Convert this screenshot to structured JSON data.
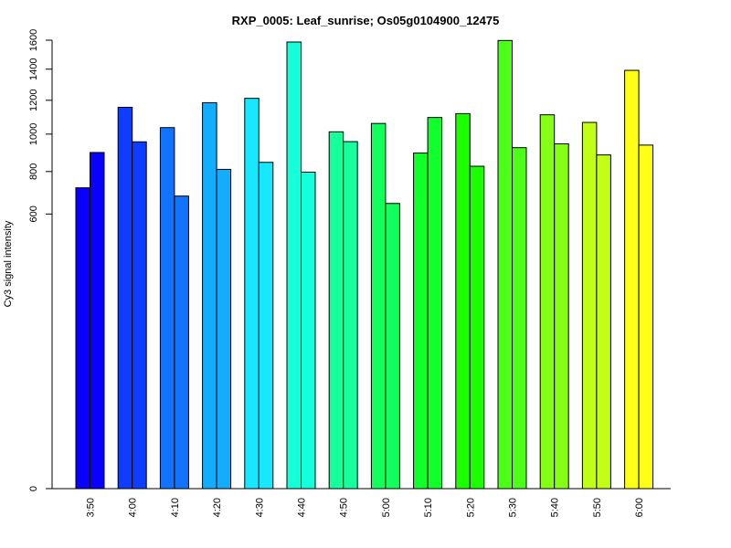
{
  "chart_data": {
    "type": "bar",
    "title": "RXP_0005: Leaf_sunrise; Os05g0104900_12475",
    "ylabel": "Cy3 signal intensity",
    "xlabel": "",
    "yticks": [
      0,
      600,
      800,
      1000,
      1200,
      1400,
      1600
    ],
    "ylim": [
      0,
      1600
    ],
    "y_scale": "sqrt",
    "grid": false,
    "legend": "none",
    "categories": [
      "3:50",
      "4:00",
      "4:10",
      "4:20",
      "4:30",
      "4:40",
      "4:50",
      "5:00",
      "5:10",
      "5:20",
      "5:30",
      "5:40",
      "5:50",
      "6:00"
    ],
    "colors": [
      "#0a00ff",
      "#0f3dff",
      "#1173ff",
      "#13adff",
      "#17e8ff",
      "#14ffda",
      "#16ff9c",
      "#12ff5c",
      "#11ff2b",
      "#1cff00",
      "#4dff18",
      "#86ff17",
      "#c2ff17",
      "#ffff17"
    ],
    "series": [
      {
        "values": [
          720,
          1157,
          1037,
          1185,
          1212,
          1587,
          1013,
          1061,
          896,
          1119,
          1598,
          1112,
          1067,
          1392
        ]
      },
      {
        "values": [
          899,
          957,
          681,
          811,
          847,
          797,
          958,
          647,
          1096,
          827,
          925,
          946,
          886,
          939
        ]
      }
    ]
  }
}
